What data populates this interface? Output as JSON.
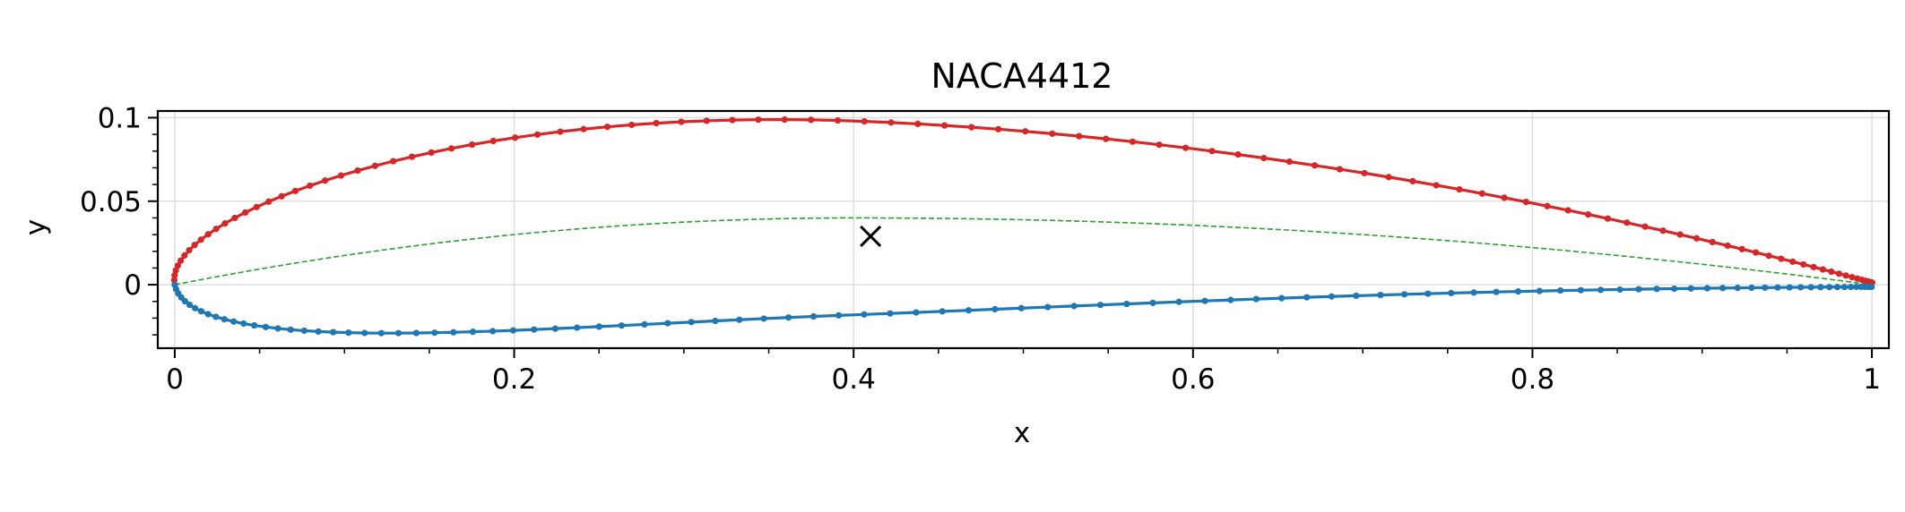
{
  "chart_data": {
    "type": "line",
    "title": "NACA4412",
    "xlabel": "x",
    "ylabel": "y",
    "xlim": [
      -0.01,
      1.01
    ],
    "ylim": [
      -0.038,
      0.104
    ],
    "xticks": [
      0,
      0.2,
      0.4,
      0.6,
      0.8,
      1
    ],
    "xtick_labels": [
      "0",
      "0.2",
      "0.4",
      "0.6",
      "0.8",
      "1"
    ],
    "yticks": [
      0,
      0.05,
      0.1
    ],
    "ytick_labels": [
      "0",
      "0.05",
      "0.1"
    ],
    "grid": true,
    "airfoil": {
      "max_camber": 0.04,
      "max_camber_position": 0.4,
      "thickness": 0.12,
      "points_per_surface": 101
    },
    "series": [
      {
        "role": "upper-surface",
        "color": "#d62728",
        "style": "solid-markers"
      },
      {
        "role": "lower-surface",
        "color": "#1f77b4",
        "style": "solid-markers"
      },
      {
        "role": "camber-line",
        "color": "#2ca02c",
        "style": "dashed"
      }
    ],
    "centroid_marker": {
      "x": 0.41,
      "y": 0.029,
      "symbol": "x",
      "color": "#000000"
    }
  }
}
